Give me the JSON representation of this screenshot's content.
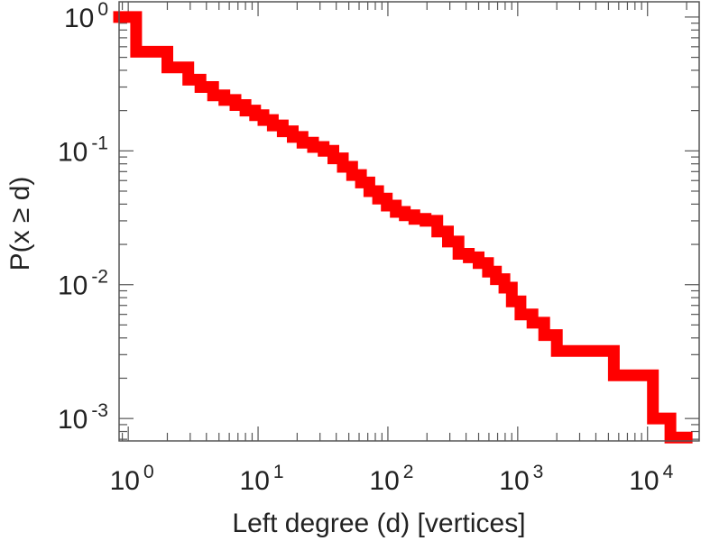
{
  "chart_data": {
    "type": "line",
    "step": true,
    "title": "",
    "xlabel": "Left degree (d) [vertices]",
    "ylabel": "P(x ≥ d)",
    "xscale": "log",
    "yscale": "log",
    "xlim": [
      0.85,
      25000
    ],
    "ylim": [
      0.00068,
      1.3
    ],
    "grid": false,
    "color": "#ff0000",
    "x_ticks": [
      {
        "base": "10",
        "exp": "0",
        "value": 1
      },
      {
        "base": "10",
        "exp": "1",
        "value": 10
      },
      {
        "base": "10",
        "exp": "2",
        "value": 100
      },
      {
        "base": "10",
        "exp": "3",
        "value": 1000
      },
      {
        "base": "10",
        "exp": "4",
        "value": 10000
      }
    ],
    "y_ticks": [
      {
        "base": "10",
        "exp": "0",
        "value": 1
      },
      {
        "base": "10",
        "exp": "-1",
        "value": 0.1
      },
      {
        "base": "10",
        "exp": "-2",
        "value": 0.01
      },
      {
        "base": "10",
        "exp": "-3",
        "value": 0.001
      }
    ],
    "series": [
      {
        "x": [
          0.85,
          1,
          1.15,
          2,
          2.9,
          3.6,
          4.5,
          5.5,
          6.7,
          8,
          9.5,
          11,
          13,
          15.5,
          18.5,
          22,
          26.5,
          32,
          38,
          45,
          53,
          62,
          72,
          84,
          98,
          115,
          135,
          160,
          195,
          240,
          290,
          350,
          420,
          500,
          590,
          680,
          790,
          900,
          1050,
          1300,
          1600,
          2000,
          5500,
          11000,
          15000,
          20000
        ],
        "y": [
          1,
          1,
          0.55,
          0.42,
          0.34,
          0.3,
          0.26,
          0.24,
          0.22,
          0.2,
          0.185,
          0.17,
          0.155,
          0.14,
          0.127,
          0.115,
          0.107,
          0.1,
          0.088,
          0.076,
          0.066,
          0.058,
          0.05,
          0.044,
          0.039,
          0.035,
          0.033,
          0.031,
          0.03,
          0.025,
          0.021,
          0.017,
          0.016,
          0.0145,
          0.0125,
          0.011,
          0.0095,
          0.0075,
          0.006,
          0.0052,
          0.0042,
          0.0032,
          0.0021,
          0.001,
          0.00072,
          0.00072
        ]
      }
    ]
  }
}
